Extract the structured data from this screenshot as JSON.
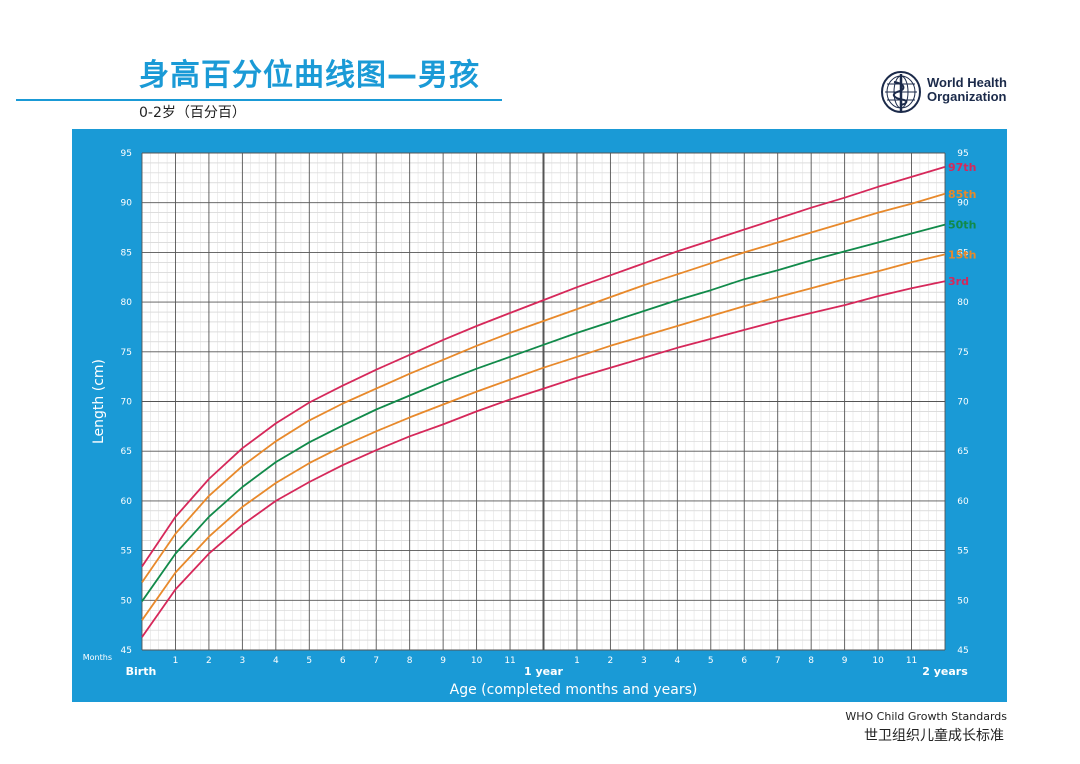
{
  "header": {
    "title": "身高百分位曲线图—男孩",
    "subtitle": "0-2岁（百分百）"
  },
  "logo": {
    "line1": "World Health",
    "line2": "Organization",
    "icon": "who-emblem-icon"
  },
  "footer": {
    "line1": "WHO Child Growth Standards",
    "line2": "世卫组织儿童成长标准"
  },
  "colors": {
    "panel": "#1a9ad6",
    "p97": "#d6285a",
    "p85": "#e8892b",
    "p50": "#118a4a",
    "p15": "#e8892b",
    "p3": "#d6285a"
  },
  "chart_data": {
    "type": "line",
    "ylabel": "Length (cm)",
    "xlabel": "Age (completed months and years)",
    "x_unit_label": "Months",
    "x_label_birth": "Birth",
    "x_label_1y": "1 year",
    "x_label_2y": "2 years",
    "x_month_ticks": [
      "1",
      "2",
      "3",
      "4",
      "5",
      "6",
      "7",
      "8",
      "9",
      "10",
      "11",
      "1",
      "2",
      "3",
      "4",
      "5",
      "6",
      "7",
      "8",
      "9",
      "10",
      "11"
    ],
    "ylim": [
      45,
      95
    ],
    "y_ticks": [
      45,
      50,
      55,
      60,
      65,
      70,
      75,
      80,
      85,
      90,
      95
    ],
    "xlim": [
      0,
      24
    ],
    "grid": true,
    "x": [
      0,
      1,
      2,
      3,
      4,
      5,
      6,
      7,
      8,
      9,
      10,
      11,
      12,
      13,
      14,
      15,
      16,
      17,
      18,
      19,
      20,
      21,
      22,
      23,
      24
    ],
    "series": [
      {
        "name": "97th",
        "color": "#d6285a",
        "values": [
          53.4,
          58.4,
          62.2,
          65.3,
          67.8,
          69.9,
          71.6,
          73.2,
          74.7,
          76.2,
          77.6,
          78.9,
          80.2,
          81.5,
          82.7,
          83.9,
          85.1,
          86.2,
          87.3,
          88.4,
          89.5,
          90.5,
          91.6,
          92.6,
          93.6
        ]
      },
      {
        "name": "85th",
        "color": "#e8892b",
        "values": [
          51.8,
          56.7,
          60.5,
          63.5,
          66.0,
          68.1,
          69.8,
          71.3,
          72.8,
          74.2,
          75.6,
          76.9,
          78.1,
          79.3,
          80.5,
          81.7,
          82.8,
          83.9,
          85.0,
          86.0,
          87.0,
          88.0,
          89.0,
          89.9,
          90.9
        ]
      },
      {
        "name": "50th",
        "color": "#118a4a",
        "values": [
          49.9,
          54.7,
          58.4,
          61.4,
          63.9,
          65.9,
          67.6,
          69.2,
          70.6,
          72.0,
          73.3,
          74.5,
          75.7,
          76.9,
          78.0,
          79.1,
          80.2,
          81.2,
          82.3,
          83.2,
          84.2,
          85.1,
          86.0,
          86.9,
          87.8
        ]
      },
      {
        "name": "15th",
        "color": "#e8892b",
        "values": [
          48.0,
          52.8,
          56.4,
          59.4,
          61.8,
          63.8,
          65.5,
          67.0,
          68.4,
          69.7,
          71.0,
          72.2,
          73.4,
          74.5,
          75.6,
          76.6,
          77.6,
          78.6,
          79.6,
          80.5,
          81.4,
          82.3,
          83.1,
          84.0,
          84.8
        ]
      },
      {
        "name": "3rd",
        "color": "#d6285a",
        "values": [
          46.3,
          51.1,
          54.7,
          57.6,
          60.0,
          61.9,
          63.6,
          65.1,
          66.5,
          67.7,
          69.0,
          70.2,
          71.3,
          72.4,
          73.4,
          74.4,
          75.4,
          76.3,
          77.2,
          78.1,
          78.9,
          79.7,
          80.6,
          81.4,
          82.1
        ]
      }
    ]
  }
}
